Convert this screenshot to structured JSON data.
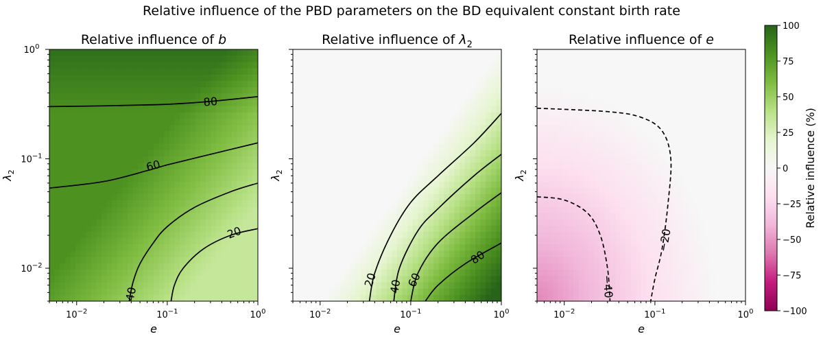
{
  "figure": {
    "title": "Relative influence of the PBD parameters on the BD equivalent constant birth rate"
  },
  "chart_data": [
    {
      "type": "heatmap",
      "panel_prefix": "Relative influence of ",
      "panel_var": "b",
      "xlabel": "e",
      "ylabel": "λ",
      "ylabel_sub": "2",
      "x_scale": "log",
      "y_scale": "log",
      "xlim": [
        0.005,
        1
      ],
      "ylim": [
        0.005,
        1
      ],
      "x_ticks": [
        {
          "value": 0.01,
          "base": "10",
          "exp": "−2"
        },
        {
          "value": 0.1,
          "base": "10",
          "exp": "−1"
        },
        {
          "value": 1,
          "base": "10",
          "exp": "0"
        }
      ],
      "y_ticks": [
        {
          "value": 0.01,
          "base": "10",
          "exp": "−2"
        },
        {
          "value": 0.1,
          "base": "10",
          "exp": "−1"
        },
        {
          "value": 1,
          "base": "10",
          "exp": "0"
        }
      ],
      "show_y_ticklabels": true,
      "contours": [
        {
          "level": 80,
          "style": "solid",
          "points": [
            [
              0.005,
              0.3
            ],
            [
              0.02,
              0.305
            ],
            [
              0.1,
              0.315
            ],
            [
              0.3,
              0.335
            ],
            [
              1,
              0.37
            ]
          ],
          "label_at": [
            0.3,
            0.33
          ]
        },
        {
          "level": 60,
          "style": "solid",
          "points": [
            [
              0.005,
              0.054
            ],
            [
              0.02,
              0.062
            ],
            [
              0.06,
              0.078
            ],
            [
              0.1,
              0.088
            ],
            [
              0.3,
              0.11
            ],
            [
              1,
              0.14
            ]
          ],
          "label_at": [
            0.07,
            0.086
          ]
        },
        {
          "level": 40,
          "style": "solid",
          "points": [
            [
              0.038,
              0.005
            ],
            [
              0.042,
              0.0075
            ],
            [
              0.05,
              0.011
            ],
            [
              0.07,
              0.017
            ],
            [
              0.1,
              0.024
            ],
            [
              0.2,
              0.036
            ],
            [
              0.5,
              0.05
            ],
            [
              1,
              0.06
            ]
          ],
          "label_at": [
            0.04,
            0.0058
          ]
        },
        {
          "level": 20,
          "style": "solid",
          "points": [
            [
              0.11,
              0.005
            ],
            [
              0.12,
              0.007
            ],
            [
              0.15,
              0.01
            ],
            [
              0.25,
              0.015
            ],
            [
              0.5,
              0.02
            ],
            [
              1,
              0.023
            ]
          ],
          "label_at": [
            0.55,
            0.021
          ]
        }
      ]
    },
    {
      "type": "heatmap",
      "panel_prefix": "Relative influence of ",
      "panel_var": "λ",
      "panel_var_sub": "2",
      "xlabel": "e",
      "ylabel": "λ",
      "ylabel_sub": "2",
      "x_scale": "log",
      "y_scale": "log",
      "xlim": [
        0.005,
        1
      ],
      "ylim": [
        0.005,
        1
      ],
      "x_ticks": [
        {
          "value": 0.01,
          "base": "10",
          "exp": "−2"
        },
        {
          "value": 0.1,
          "base": "10",
          "exp": "−1"
        },
        {
          "value": 1,
          "base": "10",
          "exp": "0"
        }
      ],
      "y_ticks": [],
      "show_y_ticklabels": false,
      "contours": [
        {
          "level": 20,
          "style": "solid",
          "points": [
            [
              0.035,
              0.005
            ],
            [
              0.04,
              0.009
            ],
            [
              0.06,
              0.02
            ],
            [
              0.1,
              0.04
            ],
            [
              0.2,
              0.07
            ],
            [
              0.5,
              0.14
            ],
            [
              1,
              0.26
            ]
          ],
          "label_at": [
            0.036,
            0.0078
          ]
        },
        {
          "level": 40,
          "style": "solid",
          "points": [
            [
              0.065,
              0.005
            ],
            [
              0.075,
              0.01
            ],
            [
              0.12,
              0.022
            ],
            [
              0.2,
              0.035
            ],
            [
              0.5,
              0.07
            ],
            [
              1,
              0.11
            ]
          ],
          "label_at": [
            0.068,
            0.0068
          ]
        },
        {
          "level": 60,
          "style": "solid",
          "points": [
            [
              0.1,
              0.005
            ],
            [
              0.12,
              0.009
            ],
            [
              0.2,
              0.017
            ],
            [
              0.5,
              0.032
            ],
            [
              1,
              0.049
            ]
          ],
          "label_at": [
            0.11,
            0.0078
          ]
        },
        {
          "level": 80,
          "style": "solid",
          "points": [
            [
              0.145,
              0.005
            ],
            [
              0.2,
              0.007
            ],
            [
              0.4,
              0.011
            ],
            [
              1,
              0.017
            ]
          ],
          "label_at": [
            0.55,
            0.0125
          ]
        }
      ]
    },
    {
      "type": "heatmap",
      "panel_prefix": "Relative influence of ",
      "panel_var": "e",
      "xlabel": "e",
      "ylabel": "λ",
      "ylabel_sub": "2",
      "x_scale": "log",
      "y_scale": "log",
      "xlim": [
        0.005,
        1
      ],
      "ylim": [
        0.005,
        1
      ],
      "x_ticks": [
        {
          "value": 0.01,
          "base": "10",
          "exp": "−2"
        },
        {
          "value": 0.1,
          "base": "10",
          "exp": "−1"
        },
        {
          "value": 1,
          "base": "10",
          "exp": "0"
        }
      ],
      "y_ticks": [],
      "show_y_ticklabels": false,
      "contours": [
        {
          "level": -20,
          "style": "dashed",
          "points": [
            [
              0.005,
              0.29
            ],
            [
              0.03,
              0.27
            ],
            [
              0.07,
              0.24
            ],
            [
              0.12,
              0.18
            ],
            [
              0.15,
              0.1
            ],
            [
              0.14,
              0.04
            ],
            [
              0.12,
              0.015
            ],
            [
              0.1,
              0.008
            ],
            [
              0.09,
              0.005
            ]
          ],
          "label_at": [
            0.13,
            0.018
          ],
          "label_text": "−20"
        },
        {
          "level": -40,
          "style": "dashed",
          "points": [
            [
              0.005,
              0.045
            ],
            [
              0.01,
              0.042
            ],
            [
              0.018,
              0.032
            ],
            [
              0.025,
              0.02
            ],
            [
              0.03,
              0.01
            ],
            [
              0.032,
              0.005
            ]
          ],
          "label_at": [
            0.03,
            0.0068
          ],
          "label_text": "−40"
        }
      ]
    }
  ],
  "colorbar": {
    "label": "Relative influence (%)",
    "min": -100,
    "max": 100,
    "ticks": [
      100,
      75,
      50,
      25,
      0,
      -25,
      -50,
      -75,
      -100
    ],
    "tick_labels": [
      "100",
      "75",
      "50",
      "25",
      "0",
      "−25",
      "−50",
      "−75",
      "−100"
    ],
    "colormap": "PiYG",
    "colors": [
      "#8e0152",
      "#c51b7d",
      "#de77ae",
      "#f1b6da",
      "#fde0ef",
      "#f7f7f7",
      "#e6f5d0",
      "#b8e186",
      "#7fbc41",
      "#4d9221",
      "#276419"
    ]
  }
}
